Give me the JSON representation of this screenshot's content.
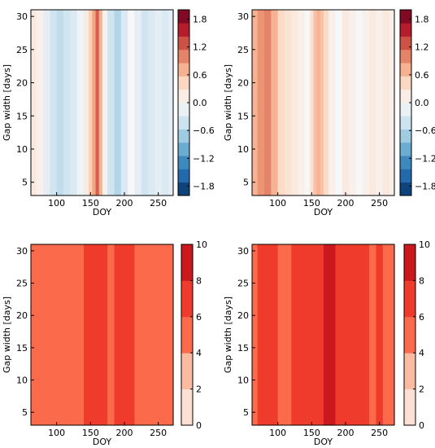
{
  "chart_data": [
    {
      "type": "heatmap",
      "panel": "top-left",
      "xlabel": "DOY",
      "ylabel": "Gap width [days]",
      "xlim": [
        62,
        272
      ],
      "ylim": [
        3,
        31
      ],
      "xticks": [
        100,
        150,
        200,
        250
      ],
      "yticks": [
        5,
        10,
        15,
        20,
        25,
        30
      ],
      "colorbar": {
        "colormap": "RdBu_r",
        "range": [
          -2.0,
          2.0
        ],
        "ticks": [
          "1.8",
          "1.2",
          "0.6",
          "0.0",
          "−0.6",
          "−1.2",
          "−1.8"
        ],
        "tick_values": [
          1.8,
          1.2,
          0.6,
          0.0,
          -0.6,
          -1.2,
          -1.8
        ]
      },
      "columns": [
        {
          "doy": 65,
          "value": 0.2
        },
        {
          "doy": 75,
          "value": 0.1
        },
        {
          "doy": 85,
          "value": -0.2
        },
        {
          "doy": 95,
          "value": -0.4
        },
        {
          "doy": 105,
          "value": -0.5
        },
        {
          "doy": 115,
          "value": -0.4
        },
        {
          "doy": 125,
          "value": -0.3
        },
        {
          "doy": 135,
          "value": -0.1
        },
        {
          "doy": 145,
          "value": 0.2
        },
        {
          "doy": 150,
          "value": 0.5
        },
        {
          "doy": 155,
          "value": 0.8
        },
        {
          "doy": 160,
          "value": 1.2
        },
        {
          "doy": 165,
          "value": 0.7
        },
        {
          "doy": 170,
          "value": 0.1
        },
        {
          "doy": 180,
          "value": -0.4
        },
        {
          "doy": 190,
          "value": -0.6
        },
        {
          "doy": 200,
          "value": -0.3
        },
        {
          "doy": 210,
          "value": 0.0
        },
        {
          "doy": 220,
          "value": -0.2
        },
        {
          "doy": 230,
          "value": -0.4
        },
        {
          "doy": 240,
          "value": -0.3
        },
        {
          "doy": 250,
          "value": -0.2
        },
        {
          "doy": 260,
          "value": -0.3
        },
        {
          "doy": 270,
          "value": -0.2
        }
      ]
    },
    {
      "type": "heatmap",
      "panel": "top-right",
      "xlabel": "DOY",
      "ylabel": "Gap width [days]",
      "xlim": [
        62,
        272
      ],
      "ylim": [
        3,
        31
      ],
      "xticks": [
        100,
        150,
        200,
        250
      ],
      "yticks": [
        5,
        10,
        15,
        20,
        25,
        30
      ],
      "colorbar": {
        "colormap": "RdBu_r",
        "range": [
          -2.0,
          2.0
        ],
        "ticks": [
          "1.8",
          "1.2",
          "0.6",
          "0.0",
          "−0.6",
          "−1.2",
          "−1.8"
        ],
        "tick_values": [
          1.8,
          1.2,
          0.6,
          0.0,
          -0.6,
          -1.2,
          -1.8
        ]
      },
      "columns": [
        {
          "doy": 65,
          "value": 0.7
        },
        {
          "doy": 75,
          "value": 0.9
        },
        {
          "doy": 85,
          "value": 1.0
        },
        {
          "doy": 95,
          "value": 0.7
        },
        {
          "doy": 105,
          "value": 0.4
        },
        {
          "doy": 115,
          "value": 0.3
        },
        {
          "doy": 125,
          "value": 0.2
        },
        {
          "doy": 135,
          "value": 0.1
        },
        {
          "doy": 145,
          "value": 0.0
        },
        {
          "doy": 150,
          "value": 0.3
        },
        {
          "doy": 155,
          "value": 0.6
        },
        {
          "doy": 160,
          "value": 0.7
        },
        {
          "doy": 165,
          "value": 0.6
        },
        {
          "doy": 170,
          "value": 0.4
        },
        {
          "doy": 180,
          "value": 0.1
        },
        {
          "doy": 190,
          "value": 0.0
        },
        {
          "doy": 200,
          "value": 0.2
        },
        {
          "doy": 210,
          "value": 0.1
        },
        {
          "doy": 220,
          "value": 0.0
        },
        {
          "doy": 230,
          "value": 0.1
        },
        {
          "doy": 240,
          "value": 0.2
        },
        {
          "doy": 250,
          "value": 0.1
        },
        {
          "doy": 260,
          "value": 0.2
        },
        {
          "doy": 270,
          "value": 0.1
        }
      ]
    },
    {
      "type": "heatmap",
      "panel": "bottom-left",
      "xlabel": "DOY",
      "ylabel": "Gap width [days]",
      "xlim": [
        62,
        272
      ],
      "ylim": [
        3,
        31
      ],
      "xticks": [
        100,
        150,
        200,
        250
      ],
      "yticks": [
        5,
        10,
        15,
        20,
        25,
        30
      ],
      "colorbar": {
        "colormap": "Reds",
        "range": [
          0,
          10
        ],
        "ticks": [
          "10",
          "8",
          "6",
          "4",
          "2",
          "0"
        ],
        "tick_values": [
          10,
          8,
          6,
          4,
          2,
          0
        ]
      },
      "columns": [
        {
          "doy": 65,
          "value": 5
        },
        {
          "doy": 75,
          "value": 5
        },
        {
          "doy": 85,
          "value": 5.5
        },
        {
          "doy": 95,
          "value": 5
        },
        {
          "doy": 105,
          "value": 5
        },
        {
          "doy": 115,
          "value": 5
        },
        {
          "doy": 125,
          "value": 5
        },
        {
          "doy": 135,
          "value": 5
        },
        {
          "doy": 145,
          "value": 6.5
        },
        {
          "doy": 150,
          "value": 7
        },
        {
          "doy": 155,
          "value": 7
        },
        {
          "doy": 160,
          "value": 7
        },
        {
          "doy": 165,
          "value": 7
        },
        {
          "doy": 170,
          "value": 6.5
        },
        {
          "doy": 180,
          "value": 5.5
        },
        {
          "doy": 190,
          "value": 7
        },
        {
          "doy": 200,
          "value": 7
        },
        {
          "doy": 210,
          "value": 6.5
        },
        {
          "doy": 220,
          "value": 5
        },
        {
          "doy": 230,
          "value": 5
        },
        {
          "doy": 240,
          "value": 5
        },
        {
          "doy": 250,
          "value": 5
        },
        {
          "doy": 260,
          "value": 5
        },
        {
          "doy": 270,
          "value": 5
        }
      ]
    },
    {
      "type": "heatmap",
      "panel": "bottom-right",
      "xlabel": "DOY",
      "ylabel": "Gap width [days]",
      "xlim": [
        62,
        272
      ],
      "ylim": [
        3,
        31
      ],
      "xticks": [
        100,
        150,
        200,
        250
      ],
      "yticks": [
        5,
        10,
        15,
        20,
        25,
        30
      ],
      "colorbar": {
        "colormap": "Reds",
        "range": [
          0,
          10
        ],
        "ticks": [
          "10",
          "8",
          "6",
          "4",
          "2",
          "0"
        ],
        "tick_values": [
          10,
          8,
          6,
          4,
          2,
          0
        ]
      },
      "columns": [
        {
          "doy": 65,
          "value": 5
        },
        {
          "doy": 75,
          "value": 7
        },
        {
          "doy": 85,
          "value": 7
        },
        {
          "doy": 95,
          "value": 7
        },
        {
          "doy": 105,
          "value": 5.5
        },
        {
          "doy": 115,
          "value": 5.5
        },
        {
          "doy": 125,
          "value": 6.5
        },
        {
          "doy": 135,
          "value": 7
        },
        {
          "doy": 145,
          "value": 7
        },
        {
          "doy": 150,
          "value": 7
        },
        {
          "doy": 155,
          "value": 7
        },
        {
          "doy": 160,
          "value": 7
        },
        {
          "doy": 165,
          "value": 7
        },
        {
          "doy": 170,
          "value": 8.5
        },
        {
          "doy": 180,
          "value": 8
        },
        {
          "doy": 190,
          "value": 7
        },
        {
          "doy": 200,
          "value": 7
        },
        {
          "doy": 210,
          "value": 7
        },
        {
          "doy": 220,
          "value": 7
        },
        {
          "doy": 230,
          "value": 7
        },
        {
          "doy": 240,
          "value": 5
        },
        {
          "doy": 250,
          "value": 7
        },
        {
          "doy": 260,
          "value": 5
        },
        {
          "doy": 270,
          "value": 5
        }
      ]
    }
  ]
}
